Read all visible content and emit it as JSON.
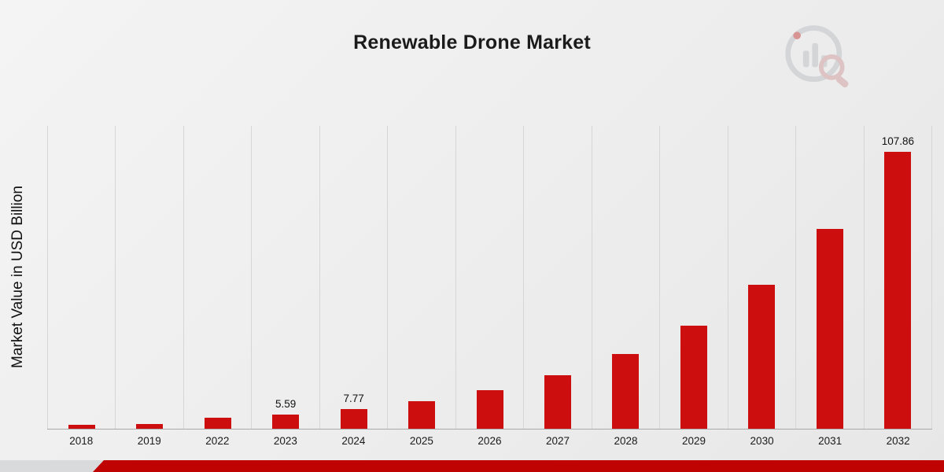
{
  "title": "Renewable Drone Market",
  "ylabel": "Market Value in USD Billion",
  "logo": {
    "icon": "bar-chart-magnifier-logo"
  },
  "colors": {
    "bar": "#cc0e0e",
    "accent_stripe": "#bf0202",
    "gridline": "#d6d6d6",
    "background": "#efefef"
  },
  "chart_data": {
    "type": "bar",
    "title": "Renewable Drone Market",
    "xlabel": "",
    "ylabel": "Market Value in USD Billion",
    "categories": [
      "2018",
      "2019",
      "2022",
      "2023",
      "2024",
      "2025",
      "2026",
      "2027",
      "2028",
      "2029",
      "2030",
      "2031",
      "2032"
    ],
    "values": [
      1.5,
      1.8,
      4.2,
      5.59,
      7.77,
      10.8,
      15.0,
      20.9,
      29.0,
      40.3,
      56.1,
      78.0,
      107.86
    ],
    "data_labels": [
      "",
      "",
      "",
      "5.59",
      "7.77",
      "",
      "",
      "",
      "",
      "",
      "",
      "",
      "107.86"
    ],
    "ylim": [
      0,
      118
    ],
    "grid": "vertical-column-dividers",
    "legend": "none",
    "bar_color": "#cc0e0e"
  }
}
